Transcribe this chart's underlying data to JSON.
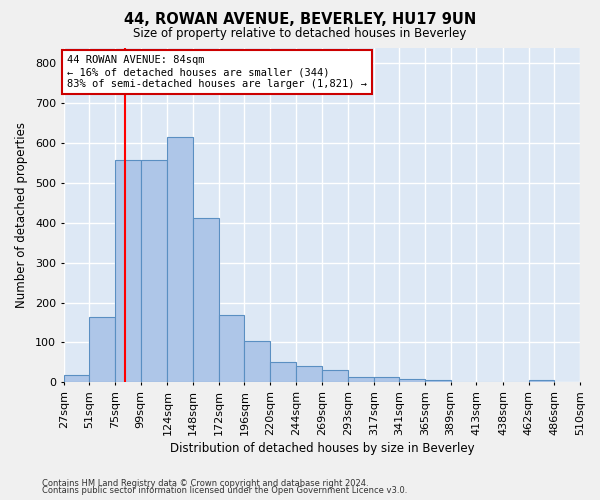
{
  "title": "44, ROWAN AVENUE, BEVERLEY, HU17 9UN",
  "subtitle": "Size of property relative to detached houses in Beverley",
  "xlabel": "Distribution of detached houses by size in Beverley",
  "ylabel": "Number of detached properties",
  "bar_values": [
    18,
    163,
    558,
    558,
    616,
    413,
    170,
    103,
    52,
    40,
    30,
    14,
    14,
    9,
    6,
    0,
    0,
    0,
    7
  ],
  "bin_edges": [
    27,
    51,
    75,
    99,
    124,
    148,
    172,
    196,
    220,
    244,
    269,
    293,
    317,
    341,
    365,
    389,
    413,
    438,
    462,
    486
  ],
  "x_tick_positions": [
    27,
    51,
    75,
    99,
    124,
    148,
    172,
    196,
    220,
    244,
    269,
    293,
    317,
    341,
    365,
    389,
    413,
    438,
    462,
    486,
    510
  ],
  "x_tick_labels": [
    "27sqm",
    "51sqm",
    "75sqm",
    "99sqm",
    "124sqm",
    "148sqm",
    "172sqm",
    "196sqm",
    "220sqm",
    "244sqm",
    "269sqm",
    "293sqm",
    "317sqm",
    "341sqm",
    "365sqm",
    "389sqm",
    "413sqm",
    "438sqm",
    "462sqm",
    "486sqm",
    "510sqm"
  ],
  "bar_color": "#aec6e8",
  "bar_edge_color": "#5a8fc2",
  "property_line_x": 84,
  "annotation_line1": "44 ROWAN AVENUE: 84sqm",
  "annotation_line2": "← 16% of detached houses are smaller (344)",
  "annotation_line3": "83% of semi-detached houses are larger (1,821) →",
  "annotation_box_color": "#cc0000",
  "ylim": [
    0,
    840
  ],
  "yticks": [
    0,
    100,
    200,
    300,
    400,
    500,
    600,
    700,
    800
  ],
  "footer1": "Contains HM Land Registry data © Crown copyright and database right 2024.",
  "footer2": "Contains public sector information licensed under the Open Government Licence v3.0.",
  "background_color": "#dde8f5",
  "grid_color": "#ffffff"
}
